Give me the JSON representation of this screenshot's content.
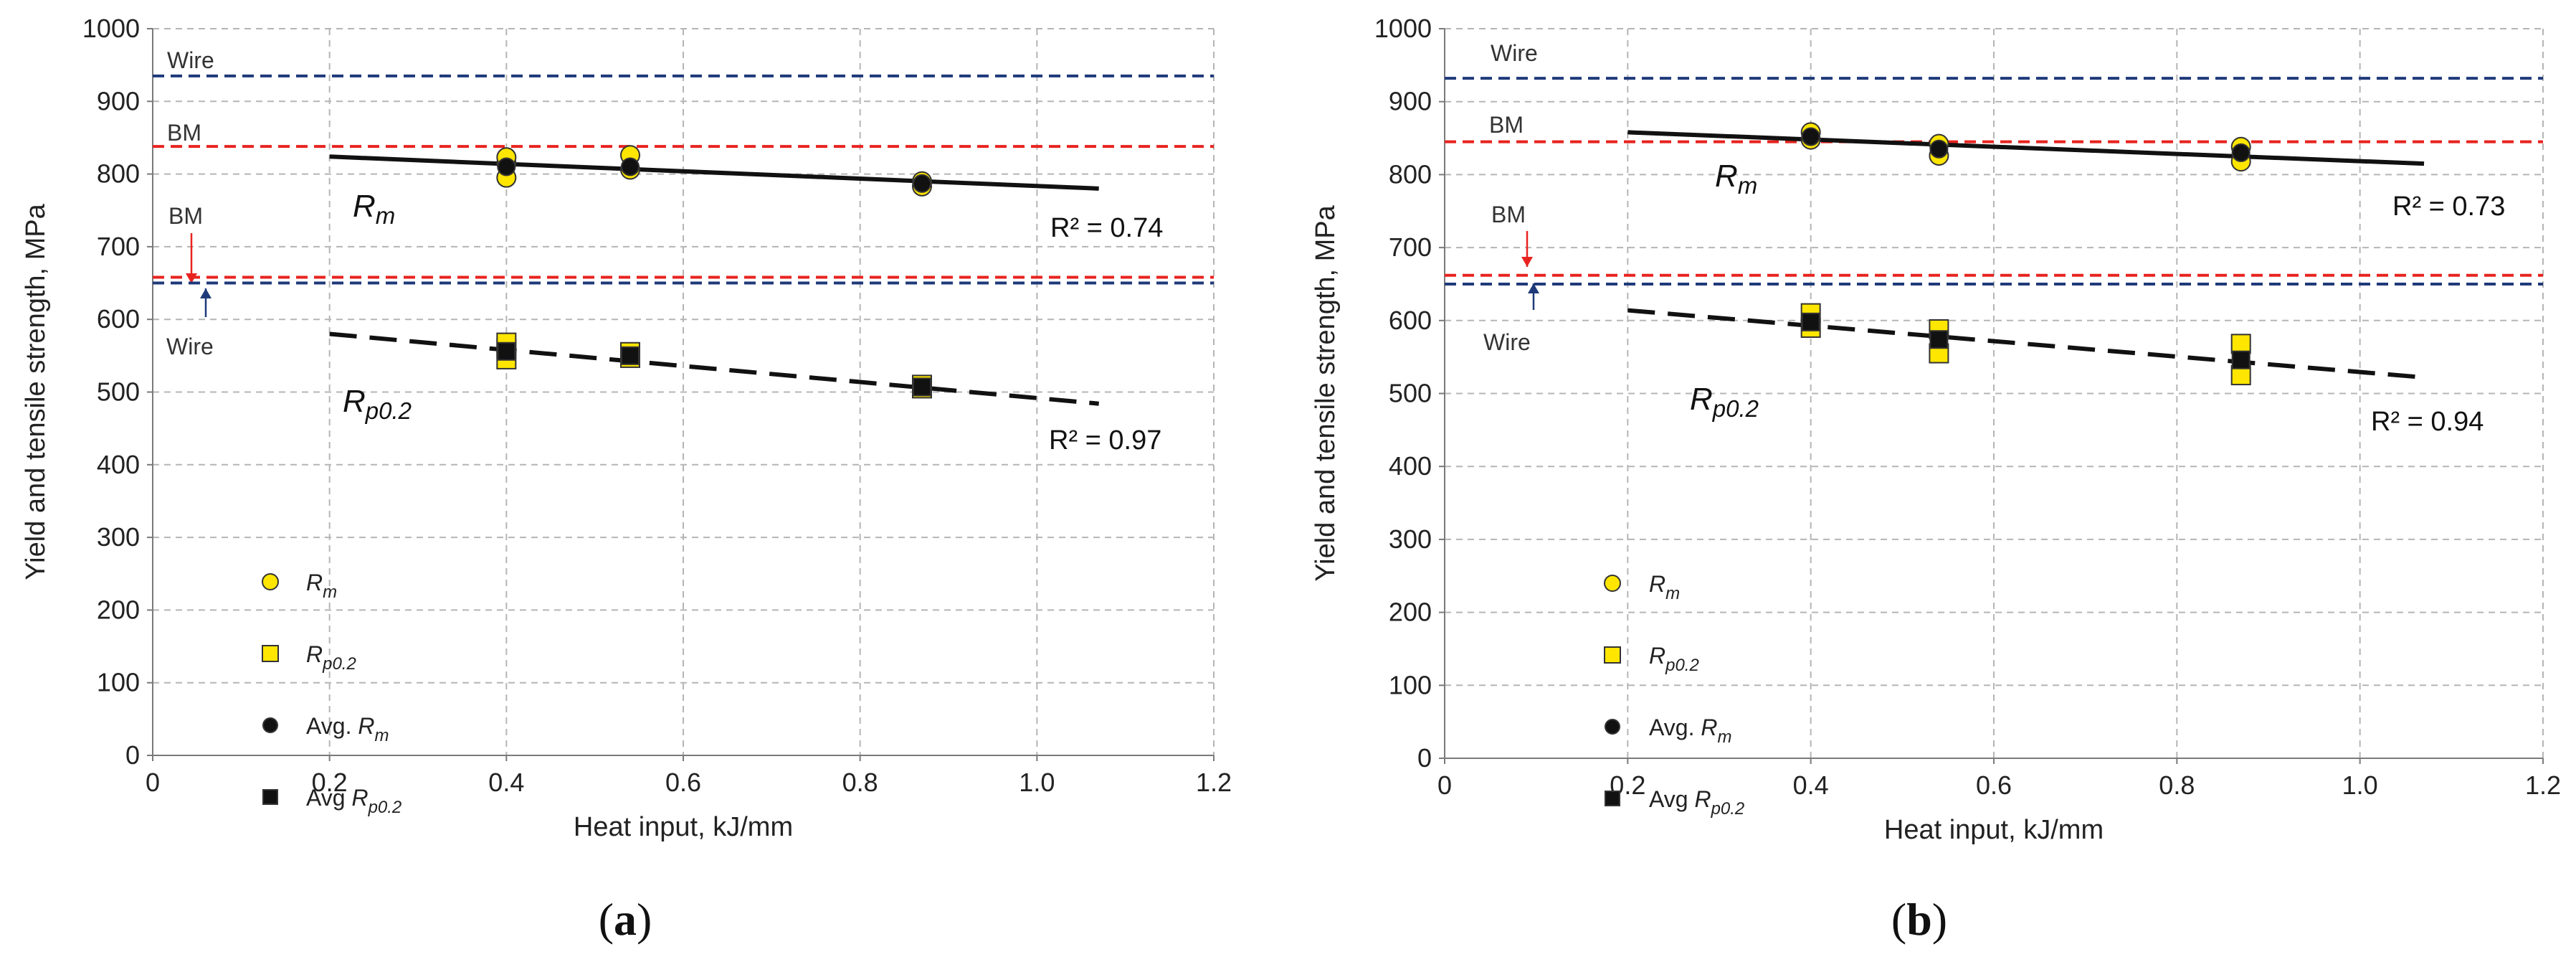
{
  "chart_data": [
    {
      "type": "scatter",
      "panel_label": "a",
      "xlabel": "Heat input, kJ/mm",
      "ylabel": "Yield and tensile strength, MPa",
      "xlim": [
        0,
        1.2
      ],
      "ylim": [
        0,
        1000
      ],
      "x_ticks": [
        0,
        0.2,
        0.4,
        0.6,
        0.8,
        1.0,
        1.2
      ],
      "x_tick_labels": [
        "0",
        "0.2",
        "0.4",
        "0.6",
        "0.8",
        "1.0",
        "1.2"
      ],
      "y_ticks": [
        0,
        100,
        200,
        300,
        400,
        500,
        600,
        700,
        800,
        900,
        1000
      ],
      "y_tick_labels": [
        "0",
        "100",
        "200",
        "300",
        "400",
        "500",
        "600",
        "700",
        "800",
        "900",
        "1000"
      ],
      "grid": true,
      "reference_lines": [
        {
          "name": "Wire Rm",
          "label": "Wire",
          "value": 935,
          "color": "#1f3a7a"
        },
        {
          "name": "BM Rm",
          "label": "BM",
          "value": 838,
          "color": "#e8231f"
        },
        {
          "name": "BM Rp0.2",
          "label": "BM",
          "value": 658,
          "color": "#e8231f"
        },
        {
          "name": "Wire Rp0.2",
          "label": "Wire",
          "value": 650,
          "color": "#1f3a7a"
        }
      ],
      "series": [
        {
          "name": "Rm",
          "marker": "circle",
          "fill": "#ffe600",
          "x": [
            0.4,
            0.4,
            0.4,
            0.54,
            0.54,
            0.87,
            0.87
          ],
          "y": [
            795,
            815,
            823,
            806,
            826,
            783,
            790
          ]
        },
        {
          "name": "Rp0.2",
          "marker": "square",
          "fill": "#ffe600",
          "x": [
            0.4,
            0.4,
            0.4,
            0.54,
            0.54,
            0.87,
            0.87
          ],
          "y": [
            545,
            560,
            568,
            547,
            555,
            505,
            510
          ]
        },
        {
          "name": "Avg. Rm",
          "marker": "circle",
          "fill": "#111111",
          "x": [
            0.4,
            0.54,
            0.87
          ],
          "y": [
            810,
            810,
            787
          ]
        },
        {
          "name": "Avg Rp0.2",
          "marker": "square",
          "fill": "#111111",
          "x": [
            0.4,
            0.54,
            0.87
          ],
          "y": [
            556,
            550,
            507
          ]
        }
      ],
      "trendlines": [
        {
          "name": "Rm trend",
          "style": "solid",
          "x": [
            0.2,
            1.07
          ],
          "y": [
            824,
            780
          ],
          "r2": "R² = 0.74"
        },
        {
          "name": "Rp0.2 trend",
          "style": "dashed",
          "x": [
            0.2,
            1.07
          ],
          "y": [
            580,
            484
          ],
          "r2": "R² = 0.97"
        }
      ],
      "series_labels": {
        "rm": {
          "main": "R",
          "sub": "m"
        },
        "rp": {
          "main": "R",
          "sub": "p0.2"
        }
      },
      "legend": [
        {
          "prefix": "",
          "main": "R",
          "sub": "m",
          "marker": "circle",
          "fill": "#ffe600"
        },
        {
          "prefix": "",
          "main": "R",
          "sub": "p0.2",
          "marker": "square",
          "fill": "#ffe600"
        },
        {
          "prefix": "Avg. ",
          "main": "R",
          "sub": "m",
          "marker": "circle",
          "fill": "#111111"
        },
        {
          "prefix": "Avg ",
          "main": "R",
          "sub": "p0.2",
          "marker": "square",
          "fill": "#111111"
        }
      ],
      "legend_position": "bottom-left"
    },
    {
      "type": "scatter",
      "panel_label": "b",
      "xlabel": "Heat input, kJ/mm",
      "ylabel": "Yield and tensile strength, MPa",
      "xlim": [
        0,
        1.2
      ],
      "ylim": [
        0,
        1000
      ],
      "x_ticks": [
        0,
        0.2,
        0.4,
        0.6,
        0.8,
        1.0,
        1.2
      ],
      "x_tick_labels": [
        "0",
        "0.2",
        "0.4",
        "0.6",
        "0.8",
        "1.0",
        "1.2"
      ],
      "y_ticks": [
        0,
        100,
        200,
        300,
        400,
        500,
        600,
        700,
        800,
        900,
        1000
      ],
      "y_tick_labels": [
        "0",
        "100",
        "200",
        "300",
        "400",
        "500",
        "600",
        "700",
        "800",
        "900",
        "1000"
      ],
      "grid": true,
      "reference_lines": [
        {
          "name": "Wire Rm",
          "label": "Wire",
          "value": 932,
          "color": "#1f3a7a"
        },
        {
          "name": "BM Rm",
          "label": "BM",
          "value": 845,
          "color": "#e8231f"
        },
        {
          "name": "BM Rp0.2",
          "label": "BM",
          "value": 662,
          "color": "#e8231f"
        },
        {
          "name": "Wire Rp0.2",
          "label": "Wire",
          "value": 650,
          "color": "#1f3a7a"
        }
      ],
      "series": [
        {
          "name": "Rm",
          "marker": "circle",
          "fill": "#ffe600",
          "x": [
            0.4,
            0.4,
            0.54,
            0.54,
            0.87,
            0.87
          ],
          "y": [
            848,
            858,
            826,
            842,
            818,
            838
          ]
        },
        {
          "name": "Rp0.2",
          "marker": "square",
          "fill": "#ffe600",
          "x": [
            0.4,
            0.4,
            0.54,
            0.54,
            0.87,
            0.87
          ],
          "y": [
            590,
            610,
            555,
            588,
            525,
            568
          ]
        },
        {
          "name": "Avg. Rm",
          "marker": "circle",
          "fill": "#111111",
          "x": [
            0.4,
            0.54,
            0.87
          ],
          "y": [
            852,
            835,
            830
          ]
        },
        {
          "name": "Avg Rp0.2",
          "marker": "square",
          "fill": "#111111",
          "x": [
            0.4,
            0.54,
            0.87
          ],
          "y": [
            598,
            574,
            546
          ]
        }
      ],
      "trendlines": [
        {
          "name": "Rm trend",
          "style": "solid",
          "x": [
            0.2,
            1.07
          ],
          "y": [
            858,
            815
          ],
          "r2": "R² = 0.73"
        },
        {
          "name": "Rp0.2 trend",
          "style": "dashed",
          "x": [
            0.2,
            1.07
          ],
          "y": [
            614,
            522
          ],
          "r2": "R² = 0.94"
        }
      ],
      "series_labels": {
        "rm": {
          "main": "R",
          "sub": "m"
        },
        "rp": {
          "main": "R",
          "sub": "p0.2"
        }
      },
      "legend": [
        {
          "prefix": "",
          "main": "R",
          "sub": "m",
          "marker": "circle",
          "fill": "#ffe600"
        },
        {
          "prefix": "",
          "main": "R",
          "sub": "p0.2",
          "marker": "square",
          "fill": "#ffe600"
        },
        {
          "prefix": "Avg. ",
          "main": "R",
          "sub": "m",
          "marker": "circle",
          "fill": "#111111"
        },
        {
          "prefix": "Avg ",
          "main": "R",
          "sub": "p0.2",
          "marker": "square",
          "fill": "#111111"
        }
      ],
      "legend_position": "bottom-left"
    }
  ]
}
